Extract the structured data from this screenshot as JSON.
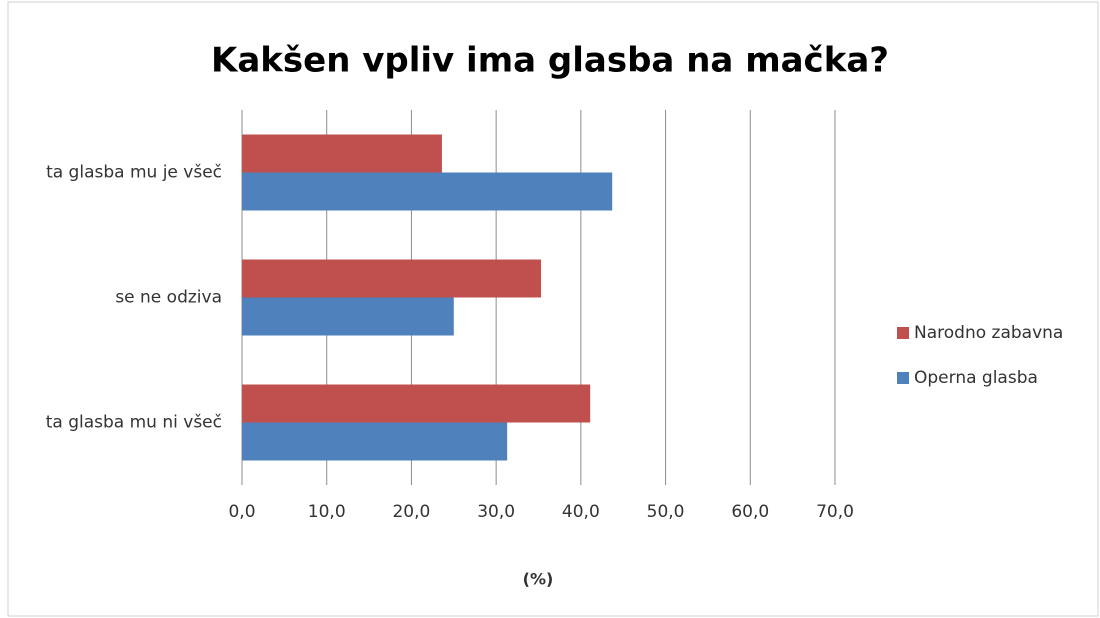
{
  "chart_data": {
    "type": "bar",
    "orientation": "horizontal",
    "title": "Kakšen vpliv ima glasba na mačka?",
    "categories": [
      "ta glasba mu je všeč",
      "se ne odziva",
      "ta glasba mu ni všeč"
    ],
    "series": [
      {
        "name": "Narodno zabavna",
        "color": "#c0504d",
        "values": [
          23.6,
          35.3,
          41.1
        ]
      },
      {
        "name": "Operna glasba",
        "color": "#4f81bd",
        "values": [
          43.7,
          25.0,
          31.3
        ]
      }
    ],
    "xlabel": "(%)",
    "xlim": [
      0,
      70
    ],
    "xticks": [
      {
        "value": 0,
        "label": "0,0"
      },
      {
        "value": 10,
        "label": "10,0"
      },
      {
        "value": 20,
        "label": "20,0"
      },
      {
        "value": 30,
        "label": "30,0"
      },
      {
        "value": 40,
        "label": "40,0"
      },
      {
        "value": 50,
        "label": "50,0"
      },
      {
        "value": 60,
        "label": "60,0"
      },
      {
        "value": 70,
        "label": "70,0"
      }
    ],
    "grid": true,
    "legend": "right"
  }
}
